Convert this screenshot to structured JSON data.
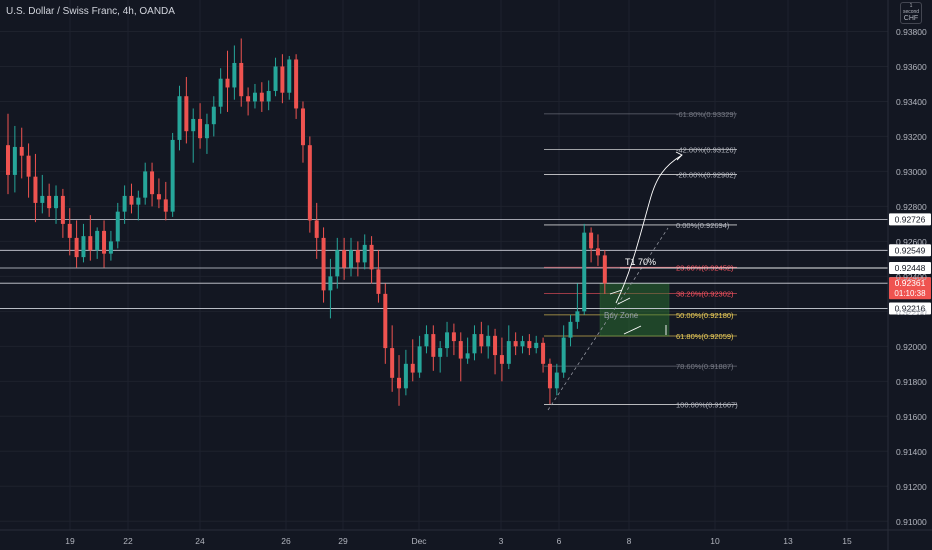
{
  "header": {
    "title": "U.S. Dollar / Swiss Franc, 4h, OANDA",
    "currency_top": "1 second",
    "currency": "CHF"
  },
  "colors": {
    "background": "#131722",
    "up": "#26a69a",
    "down": "#ef5350",
    "grid": "#1e222d",
    "axis_text": "#b2b5be",
    "fib_line": "#787b86",
    "fib_text": "#b2b5be",
    "fib_23": "#f7525f",
    "fib_38": "#f7525f",
    "fib_50": "#f0d05a",
    "fib_61": "#f0d05a",
    "zone_fill": "#2e7d32",
    "level_line": "#ffffff",
    "current_badge": "#ef5350"
  },
  "chart_data": {
    "type": "candlestick",
    "symbol": "U.S. Dollar / Swiss Franc",
    "timeframe": "4h",
    "source": "OANDA",
    "ylim": [
      0.9095,
      0.9398
    ],
    "y_ticks": [
      "0.91000",
      "0.91200",
      "0.91400",
      "0.91600",
      "0.91800",
      "0.92000",
      "0.92200",
      "0.92400",
      "0.92600",
      "0.92800",
      "0.93000",
      "0.93200",
      "0.93400",
      "0.93600",
      "0.93800"
    ],
    "x_ticks": [
      "19",
      "22",
      "24",
      "26",
      "29",
      "Dec",
      "3",
      "6",
      "8",
      "10",
      "13",
      "15"
    ],
    "candles": [
      {
        "o": 0.9315,
        "h": 0.9333,
        "l": 0.9287,
        "c": 0.9298
      },
      {
        "o": 0.9298,
        "h": 0.9326,
        "l": 0.9288,
        "c": 0.9314
      },
      {
        "o": 0.9314,
        "h": 0.9325,
        "l": 0.9296,
        "c": 0.9309
      },
      {
        "o": 0.9309,
        "h": 0.9316,
        "l": 0.9285,
        "c": 0.9297
      },
      {
        "o": 0.9297,
        "h": 0.931,
        "l": 0.9271,
        "c": 0.9282
      },
      {
        "o": 0.9282,
        "h": 0.9298,
        "l": 0.9276,
        "c": 0.9286
      },
      {
        "o": 0.9286,
        "h": 0.9293,
        "l": 0.9274,
        "c": 0.9279
      },
      {
        "o": 0.9279,
        "h": 0.9292,
        "l": 0.927,
        "c": 0.9286
      },
      {
        "o": 0.9286,
        "h": 0.929,
        "l": 0.9262,
        "c": 0.927
      },
      {
        "o": 0.927,
        "h": 0.9279,
        "l": 0.9252,
        "c": 0.9262
      },
      {
        "o": 0.9262,
        "h": 0.9272,
        "l": 0.9245,
        "c": 0.9251
      },
      {
        "o": 0.9251,
        "h": 0.927,
        "l": 0.9248,
        "c": 0.9263
      },
      {
        "o": 0.9263,
        "h": 0.9275,
        "l": 0.9249,
        "c": 0.9255
      },
      {
        "o": 0.9255,
        "h": 0.9268,
        "l": 0.925,
        "c": 0.9266
      },
      {
        "o": 0.9266,
        "h": 0.9272,
        "l": 0.9245,
        "c": 0.9253
      },
      {
        "o": 0.9253,
        "h": 0.9266,
        "l": 0.9249,
        "c": 0.926
      },
      {
        "o": 0.926,
        "h": 0.9282,
        "l": 0.9256,
        "c": 0.9277
      },
      {
        "o": 0.9277,
        "h": 0.9292,
        "l": 0.927,
        "c": 0.9286
      },
      {
        "o": 0.9286,
        "h": 0.9293,
        "l": 0.9276,
        "c": 0.9281
      },
      {
        "o": 0.9281,
        "h": 0.9289,
        "l": 0.9272,
        "c": 0.9285
      },
      {
        "o": 0.9285,
        "h": 0.9305,
        "l": 0.9281,
        "c": 0.93
      },
      {
        "o": 0.93,
        "h": 0.9305,
        "l": 0.928,
        "c": 0.9287
      },
      {
        "o": 0.9287,
        "h": 0.9296,
        "l": 0.9279,
        "c": 0.9284
      },
      {
        "o": 0.9284,
        "h": 0.9294,
        "l": 0.9272,
        "c": 0.9277
      },
      {
        "o": 0.9277,
        "h": 0.9322,
        "l": 0.9274,
        "c": 0.9318
      },
      {
        "o": 0.9318,
        "h": 0.9349,
        "l": 0.9312,
        "c": 0.9343
      },
      {
        "o": 0.9343,
        "h": 0.9354,
        "l": 0.9316,
        "c": 0.9323
      },
      {
        "o": 0.9323,
        "h": 0.9336,
        "l": 0.9305,
        "c": 0.933
      },
      {
        "o": 0.933,
        "h": 0.9339,
        "l": 0.9313,
        "c": 0.9319
      },
      {
        "o": 0.9319,
        "h": 0.9333,
        "l": 0.931,
        "c": 0.9327
      },
      {
        "o": 0.9327,
        "h": 0.9343,
        "l": 0.932,
        "c": 0.9337
      },
      {
        "o": 0.9337,
        "h": 0.9359,
        "l": 0.9333,
        "c": 0.9353
      },
      {
        "o": 0.9353,
        "h": 0.9369,
        "l": 0.9334,
        "c": 0.9348
      },
      {
        "o": 0.9348,
        "h": 0.9372,
        "l": 0.9341,
        "c": 0.9362
      },
      {
        "o": 0.9362,
        "h": 0.9376,
        "l": 0.9337,
        "c": 0.9343
      },
      {
        "o": 0.9343,
        "h": 0.9348,
        "l": 0.9332,
        "c": 0.934
      },
      {
        "o": 0.934,
        "h": 0.935,
        "l": 0.9336,
        "c": 0.9345
      },
      {
        "o": 0.9345,
        "h": 0.9351,
        "l": 0.9334,
        "c": 0.934
      },
      {
        "o": 0.934,
        "h": 0.9352,
        "l": 0.9335,
        "c": 0.9346
      },
      {
        "o": 0.9346,
        "h": 0.9365,
        "l": 0.9343,
        "c": 0.936
      },
      {
        "o": 0.936,
        "h": 0.9367,
        "l": 0.9339,
        "c": 0.9345
      },
      {
        "o": 0.9345,
        "h": 0.9366,
        "l": 0.9341,
        "c": 0.9364
      },
      {
        "o": 0.9364,
        "h": 0.9367,
        "l": 0.933,
        "c": 0.9336
      },
      {
        "o": 0.9336,
        "h": 0.934,
        "l": 0.9305,
        "c": 0.9315
      },
      {
        "o": 0.9315,
        "h": 0.932,
        "l": 0.9265,
        "c": 0.9272
      },
      {
        "o": 0.9272,
        "h": 0.9282,
        "l": 0.925,
        "c": 0.9262
      },
      {
        "o": 0.9262,
        "h": 0.9268,
        "l": 0.9225,
        "c": 0.9232
      },
      {
        "o": 0.9232,
        "h": 0.925,
        "l": 0.9216,
        "c": 0.924
      },
      {
        "o": 0.924,
        "h": 0.9262,
        "l": 0.9233,
        "c": 0.9255
      },
      {
        "o": 0.9255,
        "h": 0.9262,
        "l": 0.9238,
        "c": 0.9245
      },
      {
        "o": 0.9245,
        "h": 0.9262,
        "l": 0.924,
        "c": 0.9255
      },
      {
        "o": 0.9255,
        "h": 0.926,
        "l": 0.924,
        "c": 0.9248
      },
      {
        "o": 0.9248,
        "h": 0.9264,
        "l": 0.9244,
        "c": 0.9258
      },
      {
        "o": 0.9258,
        "h": 0.9263,
        "l": 0.9236,
        "c": 0.9244
      },
      {
        "o": 0.9244,
        "h": 0.9255,
        "l": 0.9225,
        "c": 0.923
      },
      {
        "o": 0.923,
        "h": 0.9236,
        "l": 0.919,
        "c": 0.9199
      },
      {
        "o": 0.9199,
        "h": 0.9212,
        "l": 0.9174,
        "c": 0.9182
      },
      {
        "o": 0.9182,
        "h": 0.9195,
        "l": 0.9166,
        "c": 0.9176
      },
      {
        "o": 0.9176,
        "h": 0.9198,
        "l": 0.9172,
        "c": 0.919
      },
      {
        "o": 0.919,
        "h": 0.9204,
        "l": 0.918,
        "c": 0.9185
      },
      {
        "o": 0.9185,
        "h": 0.9206,
        "l": 0.9182,
        "c": 0.92
      },
      {
        "o": 0.92,
        "h": 0.9212,
        "l": 0.9196,
        "c": 0.9207
      },
      {
        "o": 0.9207,
        "h": 0.9212,
        "l": 0.9186,
        "c": 0.9194
      },
      {
        "o": 0.9194,
        "h": 0.9203,
        "l": 0.9185,
        "c": 0.9199
      },
      {
        "o": 0.9199,
        "h": 0.9214,
        "l": 0.9194,
        "c": 0.9208
      },
      {
        "o": 0.9208,
        "h": 0.9213,
        "l": 0.9195,
        "c": 0.9203
      },
      {
        "o": 0.9203,
        "h": 0.9208,
        "l": 0.918,
        "c": 0.9193
      },
      {
        "o": 0.9193,
        "h": 0.9205,
        "l": 0.919,
        "c": 0.9196
      },
      {
        "o": 0.9196,
        "h": 0.9212,
        "l": 0.9192,
        "c": 0.9207
      },
      {
        "o": 0.9207,
        "h": 0.9214,
        "l": 0.9196,
        "c": 0.92
      },
      {
        "o": 0.92,
        "h": 0.9212,
        "l": 0.9193,
        "c": 0.9206
      },
      {
        "o": 0.9206,
        "h": 0.921,
        "l": 0.9184,
        "c": 0.9195
      },
      {
        "o": 0.9195,
        "h": 0.9205,
        "l": 0.918,
        "c": 0.919
      },
      {
        "o": 0.919,
        "h": 0.9212,
        "l": 0.9187,
        "c": 0.9203
      },
      {
        "o": 0.9203,
        "h": 0.9208,
        "l": 0.9195,
        "c": 0.92
      },
      {
        "o": 0.92,
        "h": 0.9206,
        "l": 0.9196,
        "c": 0.9203
      },
      {
        "o": 0.9203,
        "h": 0.9207,
        "l": 0.9195,
        "c": 0.9199
      },
      {
        "o": 0.9199,
        "h": 0.9206,
        "l": 0.9196,
        "c": 0.9202
      },
      {
        "o": 0.9202,
        "h": 0.9205,
        "l": 0.9185,
        "c": 0.919
      },
      {
        "o": 0.919,
        "h": 0.9193,
        "l": 0.9167,
        "c": 0.9176
      },
      {
        "o": 0.9176,
        "h": 0.919,
        "l": 0.9172,
        "c": 0.9185
      },
      {
        "o": 0.9185,
        "h": 0.9212,
        "l": 0.9182,
        "c": 0.9205
      },
      {
        "o": 0.9205,
        "h": 0.9218,
        "l": 0.92,
        "c": 0.9214
      },
      {
        "o": 0.9214,
        "h": 0.9236,
        "l": 0.921,
        "c": 0.922
      },
      {
        "o": 0.922,
        "h": 0.927,
        "l": 0.9218,
        "c": 0.9265
      },
      {
        "o": 0.9265,
        "h": 0.9268,
        "l": 0.9248,
        "c": 0.9256
      },
      {
        "o": 0.9256,
        "h": 0.9264,
        "l": 0.9246,
        "c": 0.9252
      },
      {
        "o": 0.9252,
        "h": 0.9255,
        "l": 0.923,
        "c": 0.9236
      }
    ],
    "price_lines": [
      {
        "value": 0.92726,
        "label": "0.92726"
      },
      {
        "value": 0.92549,
        "label": "0.92549"
      },
      {
        "value": 0.92448,
        "label": "0.92448"
      },
      {
        "value": 0.92361,
        "label": "0.92361"
      },
      {
        "value": 0.92216,
        "label": "0.92216"
      }
    ],
    "current_price": {
      "value": 0.92361,
      "label": "0.92361",
      "countdown": "01:10:38"
    },
    "fibonacci": [
      {
        "level": "-61.80%",
        "value": 0.93329,
        "label": "-61.80%(0.93329)",
        "color": "#787b86"
      },
      {
        "level": "-42.00%",
        "value": 0.93126,
        "label": "-42.00%(0.93126)",
        "color": "#ffffff"
      },
      {
        "level": "-28.00%",
        "value": 0.92982,
        "label": "-28.00%(0.92982)",
        "color": "#ffffff"
      },
      {
        "level": "0.00%",
        "value": 0.92694,
        "label": "0.00%(0.92694)",
        "color": "#ffffff"
      },
      {
        "level": "23.60%",
        "value": 0.92452,
        "label": "23.60%(0.92452)",
        "color": "#f7525f"
      },
      {
        "level": "38.20%",
        "value": 0.92302,
        "label": "38.20%(0.92302)",
        "color": "#f7525f"
      },
      {
        "level": "50.00%",
        "value": 0.9218,
        "label": "50.00%(0.92180)",
        "color": "#f0d05a"
      },
      {
        "level": "61.80%",
        "value": 0.92059,
        "label": "61.80%(0.92059)",
        "color": "#f0d05a"
      },
      {
        "level": "78.60%",
        "value": 0.91887,
        "label": "78.60%(0.91887)",
        "color": "#787b86"
      },
      {
        "level": "100.00%",
        "value": 0.91667,
        "label": "100.00%(0.91667)",
        "color": "#ffffff"
      }
    ],
    "annotations": {
      "target_label": "T1 70%",
      "zone_label": "Buy Zone",
      "zone_price_range": [
        0.92059,
        0.92302
      ]
    }
  }
}
